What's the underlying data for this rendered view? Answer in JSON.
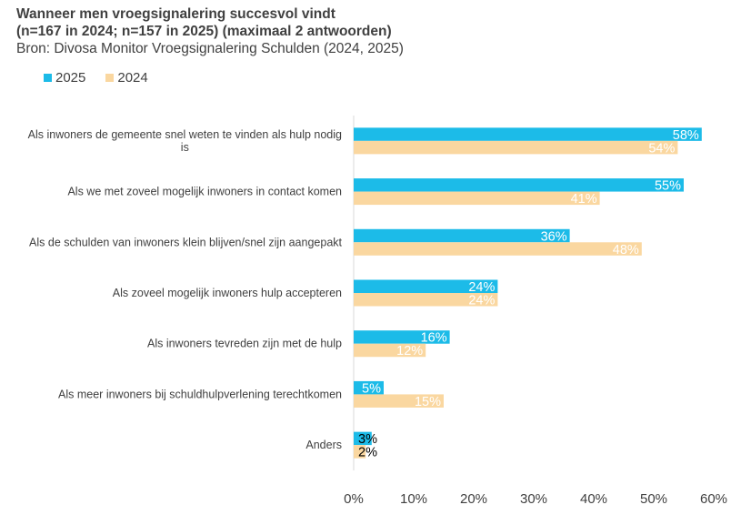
{
  "chart_data": {
    "type": "bar",
    "orientation": "horizontal",
    "title_lines": [
      "Wanneer men vroegsignalering succesvol vindt",
      "(n=167 in 2024; n=157 in 2025) (maximaal 2 antwoorden)"
    ],
    "subtitle": "Bron: Divosa Monitor Vroegsignalering Schulden (2024, 2025)",
    "categories": [
      [
        "Als inwoners de gemeente snel weten te vinden als hulp nodig",
        "is"
      ],
      [
        "Als we met zoveel mogelijk inwoners in contact komen"
      ],
      [
        "Als de schulden van inwoners klein blijven/snel zijn aangepakt"
      ],
      [
        "Als zoveel mogelijk inwoners hulp accepteren"
      ],
      [
        "Als inwoners tevreden zijn met de hulp"
      ],
      [
        "Als meer inwoners bij schuldhulpverlening terechtkomen"
      ],
      [
        "Anders"
      ]
    ],
    "series": [
      {
        "name": "2025",
        "color": "#1CBBE8",
        "values": [
          58,
          55,
          36,
          24,
          16,
          5,
          3
        ],
        "labels": [
          "58%",
          "55%",
          "36%",
          "24%",
          "16%",
          "5%",
          "3%"
        ]
      },
      {
        "name": "2024",
        "color": "#FAD7A0",
        "values": [
          54,
          41,
          48,
          24,
          12,
          15,
          2
        ],
        "labels": [
          "54%",
          "41%",
          "48%",
          "24%",
          "12%",
          "15%",
          "2%"
        ]
      }
    ],
    "xlim": [
      0,
      60
    ],
    "xticks": [
      "0%",
      "10%",
      "20%",
      "30%",
      "40%",
      "50%",
      "60%"
    ],
    "legend_position": "top-left"
  }
}
